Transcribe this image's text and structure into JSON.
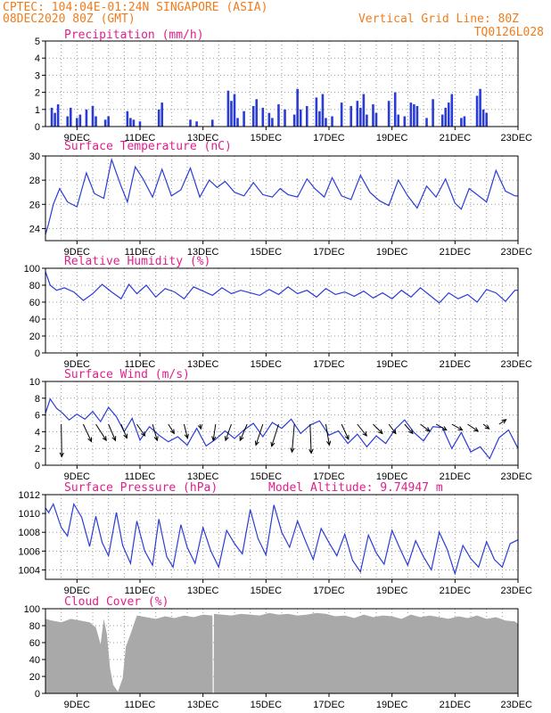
{
  "header": {
    "left_line1": "CPTEC:   104:04E-01:24N   SINGAPORE (ASIA)",
    "left_line2": "08DEC2020 80Z (GMT)",
    "right_line1": "Vertical Grid Line: 80Z",
    "right_line2": "TQ0126L028"
  },
  "colors": {
    "header_text": "#f07c1c",
    "panel_title": "#e21e8c",
    "series_line": "#2a3cd6",
    "precip_bar": "#2a3cd6",
    "cloud_fill": "#a9a9a9",
    "arrow": "#000000"
  },
  "chart_data": [
    {
      "id": "precip",
      "type": "bar",
      "title": "Precipitation (mm/h)",
      "ylim": [
        0,
        5
      ],
      "yticks": [
        "0",
        "1",
        "2",
        "3",
        "4",
        "5"
      ],
      "grid": true,
      "x_tick_labels": [
        "9DEC",
        "11DEC",
        "13DEC",
        "15DEC",
        "17DEC",
        "19DEC",
        "21DEC",
        "23DEC"
      ],
      "x_tick_days": [
        9,
        11,
        13,
        15,
        17,
        19,
        21,
        23
      ],
      "x": [
        8.2,
        8.3,
        8.4,
        8.7,
        8.8,
        9.0,
        9.1,
        9.3,
        9.5,
        9.6,
        9.9,
        10.0,
        10.6,
        10.7,
        10.8,
        11.0,
        11.6,
        11.7,
        12.6,
        12.8,
        13.3,
        13.8,
        13.9,
        14.0,
        14.1,
        14.3,
        14.6,
        14.7,
        14.9,
        15.1,
        15.2,
        15.4,
        15.6,
        15.9,
        16.0,
        16.1,
        16.3,
        16.6,
        16.7,
        16.8,
        16.9,
        17.1,
        17.4,
        17.7,
        17.9,
        18.0,
        18.1,
        18.2,
        18.4,
        18.5,
        18.9,
        19.1,
        19.2,
        19.4,
        19.6,
        19.7,
        19.8,
        20.1,
        20.3,
        20.6,
        20.7,
        20.8,
        20.9,
        21.2,
        21.3,
        21.7,
        21.8,
        21.9,
        22.0
      ],
      "values": [
        1.1,
        0.8,
        1.3,
        0.6,
        1.1,
        0.5,
        0.7,
        1.0,
        1.2,
        0.6,
        0.4,
        0.6,
        0.9,
        0.5,
        0.4,
        0.3,
        1.0,
        1.4,
        0.4,
        0.3,
        0.4,
        2.1,
        1.5,
        1.9,
        0.5,
        0.9,
        1.2,
        1.6,
        1.1,
        0.8,
        0.5,
        1.3,
        1.0,
        0.7,
        2.2,
        1.0,
        1.2,
        1.7,
        0.9,
        1.9,
        0.5,
        0.6,
        1.4,
        1.2,
        1.5,
        1.1,
        1.9,
        0.7,
        1.3,
        0.8,
        1.5,
        2.0,
        0.7,
        0.6,
        1.4,
        1.3,
        1.2,
        0.5,
        1.6,
        0.7,
        1.1,
        1.4,
        1.9,
        0.5,
        0.6,
        1.8,
        2.2,
        1.0,
        0.8
      ]
    },
    {
      "id": "temp",
      "type": "line",
      "title": "Surface Temperature (nC)",
      "ylim": [
        23,
        30
      ],
      "ytick_values": [
        24,
        26,
        28,
        30
      ],
      "yticks": [
        "24",
        "26",
        "28",
        "30"
      ],
      "grid": true,
      "x_tick_labels": [
        "9DEC",
        "11DEC",
        "13DEC",
        "15DEC",
        "17DEC",
        "19DEC",
        "21DEC",
        "23DEC"
      ],
      "x_tick_days": [
        9,
        11,
        13,
        15,
        17,
        19,
        21,
        23
      ],
      "x": [
        8.0,
        8.1,
        8.25,
        8.45,
        8.7,
        9.0,
        9.3,
        9.55,
        9.85,
        10.1,
        10.4,
        10.6,
        10.85,
        11.1,
        11.4,
        11.7,
        12.0,
        12.3,
        12.6,
        12.9,
        13.2,
        13.45,
        13.7,
        14.0,
        14.3,
        14.6,
        14.9,
        15.2,
        15.45,
        15.7,
        16.0,
        16.3,
        16.55,
        16.85,
        17.1,
        17.4,
        17.7,
        18.0,
        18.3,
        18.6,
        18.9,
        19.2,
        19.5,
        19.8,
        20.1,
        20.4,
        20.7,
        21.0,
        21.2,
        21.45,
        21.7,
        22.0,
        22.3,
        22.6,
        22.9,
        23.0
      ],
      "values": [
        23.5,
        24.4,
        26.0,
        27.3,
        26.2,
        25.8,
        28.6,
        26.9,
        26.5,
        29.7,
        27.5,
        26.2,
        29.1,
        28.1,
        26.6,
        28.9,
        26.7,
        27.2,
        29.0,
        26.6,
        28.0,
        27.4,
        27.9,
        27.0,
        26.7,
        27.8,
        26.8,
        26.6,
        27.3,
        26.8,
        26.6,
        28.1,
        27.3,
        26.6,
        28.2,
        26.7,
        26.4,
        28.4,
        27.0,
        26.3,
        25.9,
        28.0,
        26.7,
        25.7,
        27.5,
        26.6,
        28.1,
        26.1,
        25.6,
        27.3,
        26.8,
        26.2,
        28.8,
        27.1,
        26.7,
        26.7
      ]
    },
    {
      "id": "rh",
      "type": "line",
      "title": "Relative Humidity (%)",
      "ylim": [
        0,
        100
      ],
      "ytick_values": [
        0,
        20,
        40,
        60,
        80,
        100
      ],
      "yticks": [
        "0",
        "20",
        "40",
        "60",
        "80",
        "100"
      ],
      "grid": true,
      "x_tick_labels": [
        "9DEC",
        "11DEC",
        "13DEC",
        "15DEC",
        "17DEC",
        "19DEC",
        "21DEC",
        "23DEC"
      ],
      "x_tick_days": [
        9,
        11,
        13,
        15,
        17,
        19,
        21,
        23
      ],
      "x": [
        8.0,
        8.15,
        8.35,
        8.6,
        8.9,
        9.2,
        9.5,
        9.8,
        10.1,
        10.4,
        10.65,
        10.9,
        11.2,
        11.5,
        11.8,
        12.1,
        12.4,
        12.7,
        13.0,
        13.3,
        13.6,
        13.9,
        14.2,
        14.5,
        14.8,
        15.1,
        15.4,
        15.7,
        16.0,
        16.3,
        16.6,
        16.9,
        17.2,
        17.5,
        17.8,
        18.1,
        18.4,
        18.7,
        19.0,
        19.3,
        19.6,
        19.9,
        20.2,
        20.5,
        20.8,
        21.1,
        21.4,
        21.7,
        22.0,
        22.3,
        22.6,
        22.9,
        23.0
      ],
      "values": [
        96,
        80,
        74,
        77,
        72,
        62,
        70,
        81,
        72,
        64,
        81,
        70,
        80,
        66,
        76,
        72,
        64,
        78,
        73,
        68,
        77,
        70,
        74,
        71,
        68,
        75,
        69,
        78,
        70,
        74,
        66,
        76,
        69,
        72,
        67,
        73,
        65,
        71,
        64,
        74,
        66,
        77,
        68,
        59,
        71,
        64,
        69,
        60,
        75,
        71,
        61,
        74,
        74
      ]
    },
    {
      "id": "wind",
      "type": "line",
      "title": "Surface Wind (m/s)",
      "ylim": [
        0,
        10
      ],
      "ytick_values": [
        0,
        2,
        4,
        6,
        8,
        10
      ],
      "yticks": [
        "0",
        "2",
        "4",
        "6",
        "8",
        "10"
      ],
      "grid": true,
      "x_tick_labels": [
        "9DEC",
        "11DEC",
        "13DEC",
        "15DEC",
        "17DEC",
        "19DEC",
        "21DEC",
        "23DEC"
      ],
      "x_tick_days": [
        9,
        11,
        13,
        15,
        17,
        19,
        21,
        23
      ],
      "x": [
        8.0,
        8.15,
        8.35,
        8.55,
        8.75,
        9.0,
        9.25,
        9.5,
        9.75,
        10.0,
        10.25,
        10.5,
        10.75,
        11.0,
        11.3,
        11.6,
        11.9,
        12.2,
        12.5,
        12.8,
        13.1,
        13.4,
        13.7,
        14.0,
        14.3,
        14.6,
        14.9,
        15.2,
        15.5,
        15.8,
        16.1,
        16.4,
        16.7,
        17.0,
        17.3,
        17.6,
        17.9,
        18.2,
        18.5,
        18.8,
        19.1,
        19.4,
        19.7,
        20.0,
        20.3,
        20.6,
        20.9,
        21.2,
        21.5,
        21.8,
        22.1,
        22.4,
        22.7,
        23.0
      ],
      "values": [
        6.2,
        7.9,
        6.8,
        6.2,
        5.4,
        6.1,
        5.5,
        6.4,
        5.2,
        6.9,
        5.8,
        4.0,
        5.6,
        3.0,
        4.6,
        3.6,
        2.8,
        3.4,
        2.4,
        4.4,
        2.3,
        3.1,
        4.1,
        3.2,
        4.2,
        5.0,
        3.4,
        5.1,
        4.4,
        5.5,
        3.8,
        4.8,
        5.3,
        3.6,
        4.1,
        2.6,
        3.7,
        2.2,
        3.5,
        2.6,
        4.3,
        5.4,
        3.9,
        2.9,
        4.6,
        4.5,
        2.0,
        3.9,
        1.6,
        2.2,
        0.8,
        3.3,
        4.2,
        2.0
      ],
      "arrows_x": [
        8.5,
        9.2,
        9.6,
        10.0,
        10.4,
        10.9,
        11.4,
        11.9,
        12.4,
        12.9,
        13.4,
        13.9,
        14.4,
        14.9,
        15.4,
        15.9,
        16.4,
        16.9,
        17.4,
        17.9,
        18.4,
        18.9,
        19.4,
        19.9,
        20.4,
        20.9,
        21.4,
        21.9,
        22.4
      ],
      "arrows_dx": [
        0.05,
        0.7,
        0.9,
        0.6,
        0.5,
        0.7,
        0.4,
        0.5,
        0.3,
        0.1,
        -0.2,
        -0.5,
        -0.6,
        -0.6,
        -0.6,
        -0.2,
        0.1,
        0.3,
        0.6,
        0.8,
        0.8,
        0.6,
        0.7,
        0.8,
        0.9,
        0.9,
        0.9,
        0.5,
        0.6
      ],
      "arrows_dy": [
        -2.8,
        -1.5,
        -1.4,
        -1.4,
        -1.2,
        -1.0,
        -1.4,
        -0.8,
        -1.2,
        -0.4,
        -1.4,
        -1.4,
        -1.4,
        -1.8,
        -1.9,
        -2.4,
        -2.5,
        -1.8,
        -1.3,
        -1.0,
        -0.8,
        -0.8,
        -0.8,
        -0.6,
        -0.5,
        -0.5,
        -0.6,
        -0.4,
        0.4
      ]
    },
    {
      "id": "pres",
      "type": "line",
      "title": "Surface Pressure (hPa)",
      "annotation": "Model Altitude: 9.74947 m",
      "ylim": [
        1003,
        1012
      ],
      "ytick_values": [
        1004,
        1006,
        1008,
        1010,
        1012
      ],
      "yticks": [
        "1004",
        "1006",
        "1008",
        "1010",
        "1012"
      ],
      "grid": true,
      "x_tick_labels": [
        "9DEC",
        "11DEC",
        "13DEC",
        "15DEC",
        "17DEC",
        "19DEC",
        "21DEC",
        "23DEC"
      ],
      "x_tick_days": [
        9,
        11,
        13,
        15,
        17,
        19,
        21,
        23
      ],
      "x": [
        8.0,
        8.1,
        8.25,
        8.5,
        8.7,
        8.9,
        9.15,
        9.4,
        9.6,
        9.8,
        10.0,
        10.25,
        10.45,
        10.7,
        10.9,
        11.15,
        11.4,
        11.6,
        11.85,
        12.05,
        12.3,
        12.5,
        12.75,
        13.0,
        13.25,
        13.5,
        13.75,
        14.0,
        14.25,
        14.5,
        14.75,
        15.0,
        15.25,
        15.5,
        15.75,
        16.0,
        16.25,
        16.5,
        16.75,
        17.0,
        17.25,
        17.5,
        17.75,
        18.0,
        18.25,
        18.5,
        18.75,
        19.0,
        19.25,
        19.5,
        19.75,
        20.0,
        20.25,
        20.5,
        20.75,
        21.0,
        21.25,
        21.5,
        21.75,
        22.0,
        22.25,
        22.5,
        22.75,
        23.0
      ],
      "values": [
        1010.6,
        1010.1,
        1011.0,
        1008.5,
        1007.6,
        1011.0,
        1009.6,
        1006.5,
        1009.7,
        1006.9,
        1005.5,
        1010.1,
        1006.6,
        1004.7,
        1009.2,
        1006.0,
        1004.5,
        1009.4,
        1005.4,
        1004.3,
        1008.8,
        1006.4,
        1004.7,
        1008.5,
        1006.0,
        1004.3,
        1008.2,
        1006.8,
        1005.7,
        1010.4,
        1007.3,
        1005.6,
        1010.9,
        1008.0,
        1006.4,
        1009.2,
        1007.1,
        1005.1,
        1008.4,
        1006.9,
        1005.5,
        1007.8,
        1005.0,
        1003.8,
        1007.7,
        1005.8,
        1004.6,
        1008.2,
        1006.3,
        1004.5,
        1007.1,
        1005.4,
        1004.0,
        1008.0,
        1006.2,
        1003.6,
        1006.6,
        1005.2,
        1004.3,
        1007.0,
        1005.1,
        1004.3,
        1006.8,
        1007.2
      ]
    },
    {
      "id": "cloud",
      "type": "area",
      "title": "Cloud Cover (%)",
      "ylim": [
        0,
        100
      ],
      "ytick_values": [
        0,
        20,
        40,
        60,
        80,
        100
      ],
      "yticks": [
        "0",
        "20",
        "40",
        "60",
        "80",
        "100"
      ],
      "grid": true,
      "x_tick_labels": [
        "9DEC",
        "11DEC",
        "13DEC",
        "15DEC",
        "17DEC",
        "19DEC",
        "21DEC",
        "23DEC"
      ],
      "x_tick_days": [
        9,
        11,
        13,
        15,
        17,
        19,
        21,
        23
      ],
      "x": [
        8.0,
        8.2,
        8.5,
        8.8,
        9.1,
        9.4,
        9.6,
        9.75,
        9.85,
        9.95,
        10.05,
        10.15,
        10.3,
        10.45,
        10.55,
        10.7,
        10.9,
        11.2,
        11.5,
        11.8,
        12.1,
        12.4,
        12.7,
        13.0,
        13.3,
        13.31,
        13.34,
        13.35,
        13.6,
        13.9,
        14.2,
        14.5,
        14.8,
        15.1,
        15.4,
        15.7,
        16.0,
        16.3,
        16.6,
        16.9,
        17.2,
        17.5,
        17.8,
        18.1,
        18.4,
        18.7,
        19.0,
        19.3,
        19.6,
        19.9,
        20.2,
        20.5,
        20.8,
        21.1,
        21.4,
        21.7,
        22.0,
        22.3,
        22.6,
        22.9,
        23.0
      ],
      "values": [
        88,
        86,
        84,
        88,
        86,
        84,
        78,
        58,
        88,
        70,
        30,
        10,
        2,
        18,
        55,
        70,
        92,
        90,
        88,
        91,
        89,
        92,
        90,
        93,
        92,
        0,
        0,
        94,
        93,
        92,
        94,
        93,
        92,
        95,
        93,
        94,
        92,
        93,
        95,
        94,
        91,
        92,
        89,
        93,
        90,
        92,
        91,
        88,
        93,
        90,
        92,
        90,
        88,
        91,
        89,
        92,
        88,
        90,
        86,
        85,
        82
      ]
    }
  ]
}
